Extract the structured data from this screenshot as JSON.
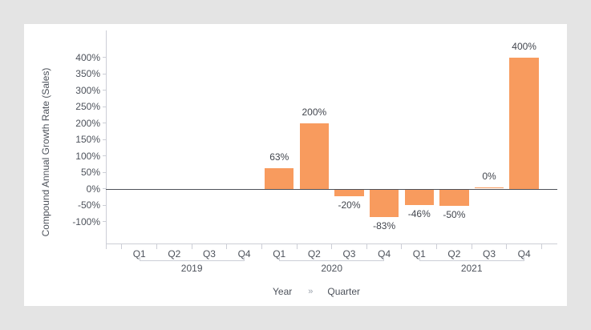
{
  "page": {
    "background_color": "#e4e4e4",
    "card_background_color": "#ffffff"
  },
  "chart_data": {
    "type": "bar",
    "title": "",
    "ylabel": "Compound Annual Growth Rate (Sales)",
    "xlabel": "Year » Quarter",
    "xlabel_parts": {
      "level1": "Year",
      "separator": "»",
      "level2": "Quarter"
    },
    "value_suffix": "%",
    "y_axis": {
      "min_tick": -100,
      "max_tick": 400,
      "tick_step": 50,
      "tick_labels": [
        "400%",
        "350%",
        "300%",
        "250%",
        "200%",
        "150%",
        "100%",
        "50%",
        "0%",
        "-50%",
        "-100%"
      ]
    },
    "legend": "none",
    "grid": "off",
    "groups": [
      {
        "year": "2019",
        "quarters": [
          "Q1",
          "Q2",
          "Q3",
          "Q4"
        ],
        "values": [
          null,
          null,
          null,
          null
        ],
        "labels": [
          null,
          null,
          null,
          null
        ]
      },
      {
        "year": "2020",
        "quarters": [
          "Q1",
          "Q2",
          "Q3",
          "Q4"
        ],
        "values": [
          63,
          200,
          -20,
          -83
        ],
        "labels": [
          "63%",
          "200%",
          "-20%",
          "-83%"
        ]
      },
      {
        "year": "2021",
        "quarters": [
          "Q1",
          "Q2",
          "Q3",
          "Q4"
        ],
        "values": [
          -46,
          -50,
          0,
          400
        ],
        "labels": [
          "-46%",
          "-50%",
          "0%",
          "400%"
        ]
      }
    ],
    "colors": {
      "bar": "#f89b5e",
      "zero_line": "#4e525a",
      "axis_line": "#ccced6",
      "tick_label": "#4d525b",
      "value_label": "#42464e",
      "separator": "#9aa1ab"
    }
  }
}
